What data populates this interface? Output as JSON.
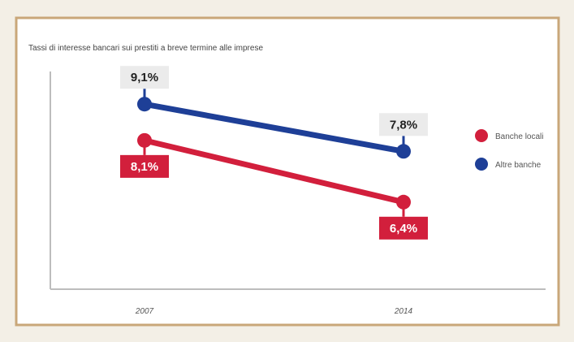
{
  "chart_data": {
    "type": "line",
    "title": "Tassi di interesse bancari sui prestiti a breve termine alle imprese",
    "categories": [
      "2007",
      "2014"
    ],
    "series": [
      {
        "name": "Banche locali",
        "values": [
          8.1,
          6.4
        ],
        "labels": [
          "8,1%",
          "6,4%"
        ],
        "color": "#d21f3c"
      },
      {
        "name": "Altre banche",
        "values": [
          9.1,
          7.8
        ],
        "labels": [
          "9,1%",
          "7,8%"
        ],
        "color": "#1e3f97"
      }
    ],
    "ylim": [
      4.0,
      10.0
    ],
    "xlabel": "",
    "ylabel": "",
    "grid": false,
    "legend": "right"
  }
}
